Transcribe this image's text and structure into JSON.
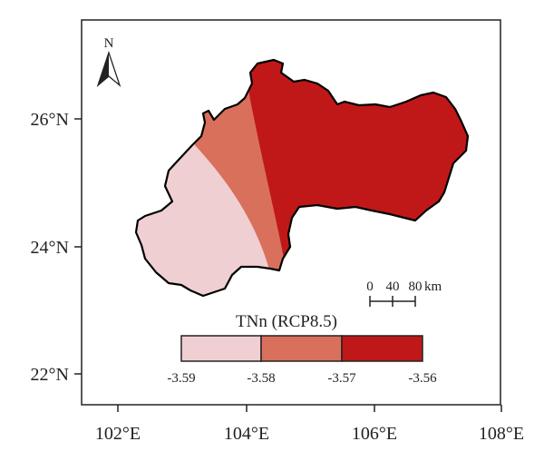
{
  "map": {
    "axes": {
      "x_ticks": [
        "102°E",
        "104°E",
        "106°E",
        "108°E"
      ],
      "y_ticks": [
        "22°N",
        "24°N",
        "26°N"
      ]
    },
    "north_arrow": {
      "label": "N"
    },
    "scale_bar": {
      "ticks": [
        "0",
        "40",
        "80"
      ],
      "unit": "km"
    },
    "legend": {
      "title": "TNn (RCP8.5)",
      "breaks": [
        "-3.59",
        "-3.58",
        "-3.57",
        "-3.56"
      ],
      "classes": [
        {
          "range": [
            "-3.59",
            "-3.58"
          ],
          "color": "#f0cfd2"
        },
        {
          "range": [
            "-3.58",
            "-3.57"
          ],
          "color": "#d9705c"
        },
        {
          "range": [
            "-3.57",
            "-3.56"
          ],
          "color": "#c01818"
        }
      ]
    },
    "colors": {
      "frame": "#222222",
      "boundary": "#000000"
    }
  }
}
